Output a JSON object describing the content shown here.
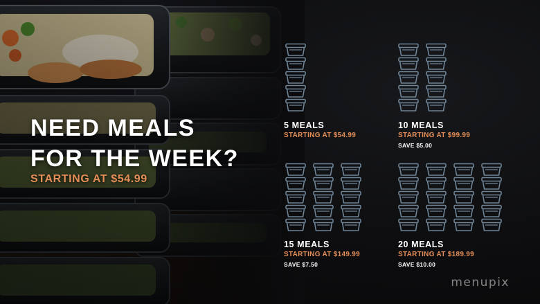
{
  "headline": {
    "line1": "NEED MEALS",
    "line2": "FOR THE WEEK?",
    "price": "STARTING AT $54.99"
  },
  "packages": [
    {
      "name": "5 MEALS",
      "price": "STARTING AT $54.99",
      "save": "",
      "meal_count": 5
    },
    {
      "name": "10 MEALS",
      "price": "STARTING AT $99.99",
      "save": "SAVE $5.00",
      "meal_count": 10
    },
    {
      "name": "15 MEALS",
      "price": "STARTING AT $149.99",
      "save": "SAVE $7.50",
      "meal_count": 15
    },
    {
      "name": "20 MEALS",
      "price": "STARTING AT $189.99",
      "save": "SAVE $10.00",
      "meal_count": 20
    }
  ],
  "watermark": "menupix",
  "colors": {
    "accent": "#e48e57",
    "icon": "#6f8496",
    "background": "#0c0c0e",
    "text": "#ffffff"
  },
  "icons": {
    "container": "meal-container-icon"
  }
}
